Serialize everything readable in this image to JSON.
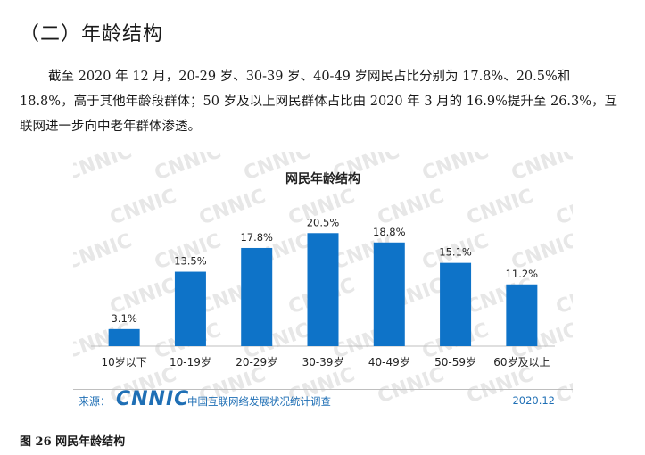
{
  "section_title": "（二）年龄结构",
  "paragraph": "截至 2020 年 12 月，20-29 岁、30-39 岁、40-49 岁网民占比分别为 17.8%、20.5%和 18.8%，高于其他年龄段群体；50 岁及以上网民群体占比由 2020 年 3 月的 16.9%提升至 26.3%，互联网进一步向中老年群体渗透。",
  "watermark": "CNNIC",
  "chart_data": {
    "type": "bar",
    "title": "网民年龄结构",
    "categories": [
      "10岁以下",
      "10-19岁",
      "20-29岁",
      "30-39岁",
      "40-49岁",
      "50-59岁",
      "60岁及以上"
    ],
    "values": [
      3.1,
      13.5,
      17.8,
      20.5,
      18.8,
      15.1,
      11.2
    ],
    "value_labels": [
      "3.1%",
      "13.5%",
      "17.8%",
      "20.5%",
      "18.8%",
      "15.1%",
      "11.2%"
    ],
    "unit": "%",
    "ylim": [
      0,
      22
    ],
    "bar_color": "#0e73c8",
    "grid": false,
    "legend": "none"
  },
  "source": {
    "label": "来源：",
    "logo_text": "CNNIC",
    "org": "中国互联网络发展状况统计调查",
    "date": "2020.12"
  },
  "caption": "图 26   网民年龄结构"
}
